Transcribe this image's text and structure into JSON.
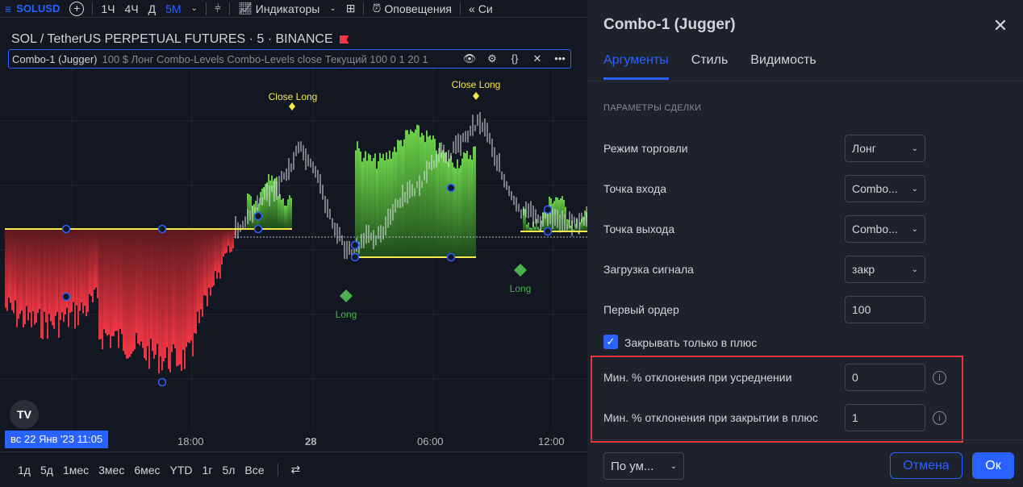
{
  "toolbar": {
    "symbol": "SOLUSD",
    "add_icon": "plus-circle-icon",
    "intervals": [
      "1Ч",
      "4Ч",
      "Д",
      "5М"
    ],
    "active_interval": "5М",
    "indicators_label": "Индикаторы",
    "alerts_label": "Оповещения",
    "replay_label": "Си"
  },
  "chart": {
    "title": "SOL / TetherUS PERPETUAL FUTURES · 5 · BINANCE",
    "indicator_name": "Combo-1 (Jugger)",
    "indicator_args": "100 $ Лонг Combo-Levels Combo-Levels close Текущий 100 0 1 20 1",
    "annotations": {
      "close_long_1": "Close Long",
      "close_long_2": "Close Long",
      "long_1": "Long",
      "long_2": "Long"
    },
    "date_badge": "вс 22 Янв '23   11:05",
    "x_ticks": [
      "18:00",
      "28",
      "06:00",
      "12:00"
    ],
    "logo_text": "TV",
    "colors": {
      "bear": "#f23645",
      "bull": "#4caf50",
      "level": "#f5e94b",
      "accent": "#2962ff"
    }
  },
  "bottom": {
    "periods": [
      "1д",
      "5д",
      "1мес",
      "3мес",
      "6мес",
      "YTD",
      "1г",
      "5л",
      "Все"
    ]
  },
  "dialog": {
    "title": "Combo-1 (Jugger)",
    "tabs": [
      "Аргументы",
      "Стиль",
      "Видимость"
    ],
    "section_title": "ПАРАМЕТРЫ СДЕЛКИ",
    "rows": {
      "trade_mode_label": "Режим торговли",
      "trade_mode_value": "Лонг",
      "entry_label": "Точка входа",
      "entry_value": "Combo...",
      "exit_label": "Точка выхода",
      "exit_value": "Combo...",
      "signal_label": "Загрузка сигнала",
      "signal_value": "закр",
      "first_order_label": "Первый ордер",
      "first_order_value": "100",
      "close_profit_label": "Закрывать только в плюс",
      "close_profit_checked": true,
      "min_dev_avg_label": "Мин. % отклонения при усреднении",
      "min_dev_avg_value": "0",
      "min_dev_close_label": "Мин. % отклонения при закрытии в плюс",
      "min_dev_close_value": "1"
    },
    "preset_label": "По ум...",
    "cancel_label": "Отмена",
    "ok_label": "Ок"
  }
}
